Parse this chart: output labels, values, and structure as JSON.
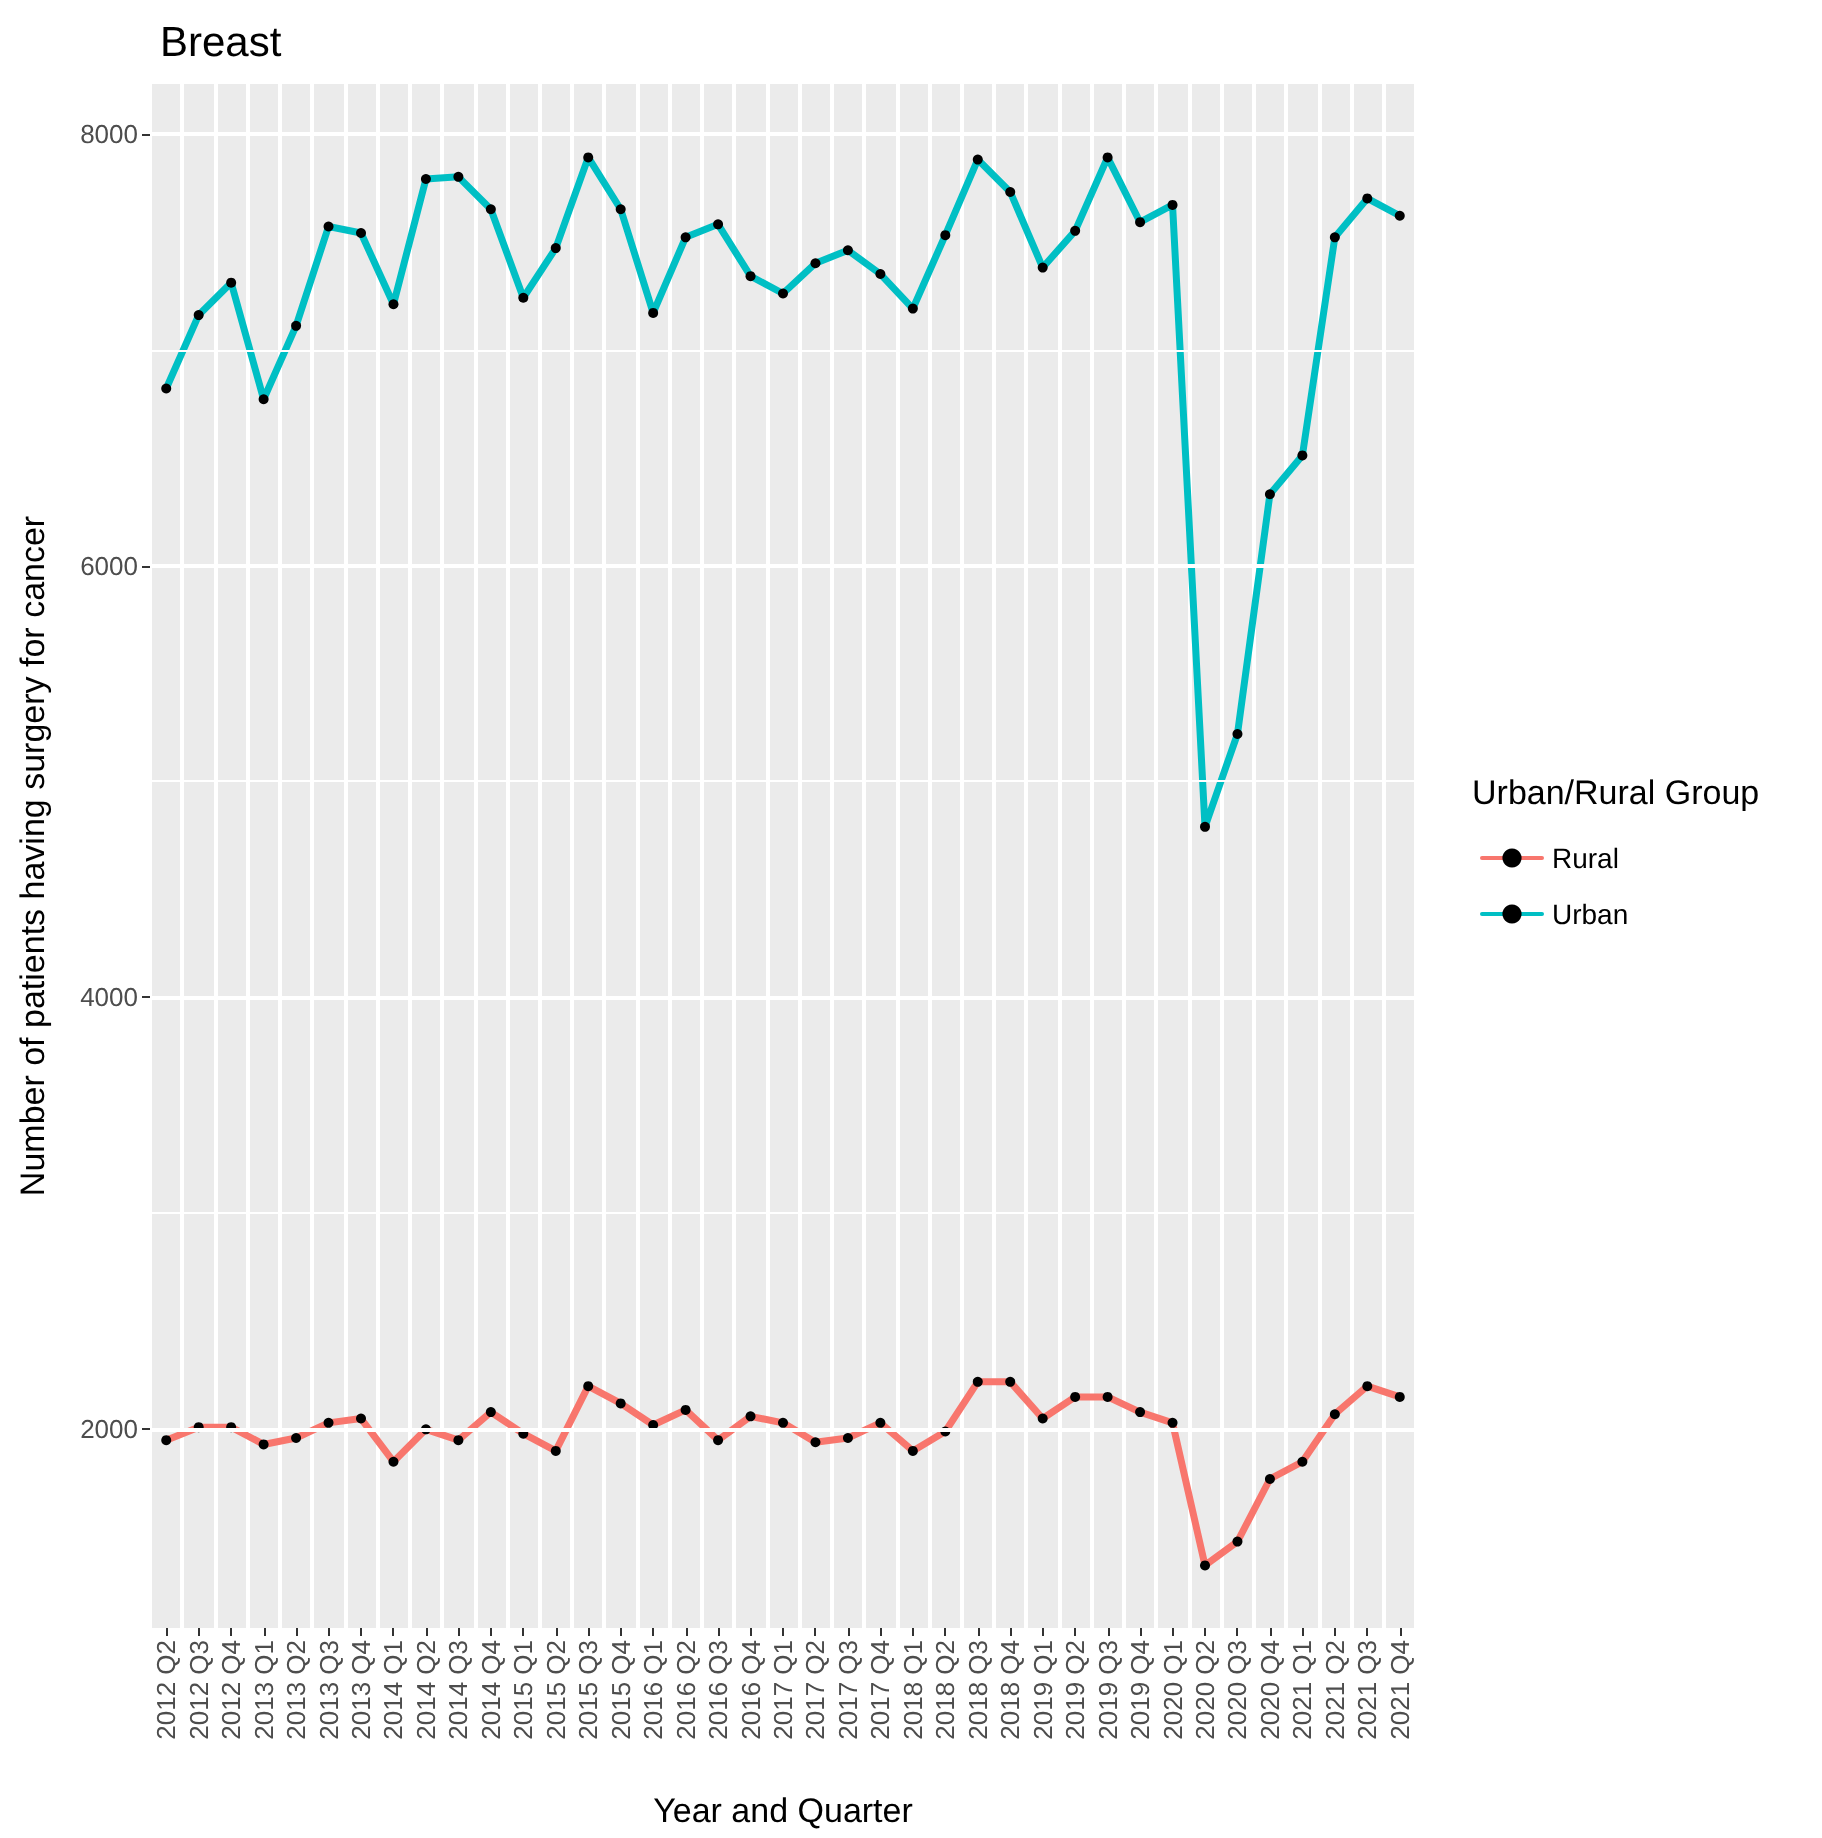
{
  "chart_data": {
    "type": "line",
    "title": "Breast",
    "xlabel": "Year and Quarter",
    "ylabel": "Number of patients having surgery for cancer",
    "legend_title": "Urban/Rural Group",
    "categories": [
      "2012 Q2",
      "2012 Q3",
      "2012 Q4",
      "2013 Q1",
      "2013 Q2",
      "2013 Q3",
      "2013 Q4",
      "2014 Q1",
      "2014 Q2",
      "2014 Q3",
      "2014 Q4",
      "2015 Q1",
      "2015 Q2",
      "2015 Q3",
      "2015 Q4",
      "2016 Q1",
      "2016 Q2",
      "2016 Q3",
      "2016 Q4",
      "2017 Q1",
      "2017 Q2",
      "2017 Q3",
      "2017 Q4",
      "2018 Q1",
      "2018 Q2",
      "2018 Q3",
      "2018 Q4",
      "2019 Q1",
      "2019 Q2",
      "2019 Q3",
      "2019 Q4",
      "2020 Q1",
      "2020 Q2",
      "2020 Q3",
      "2020 Q4",
      "2021 Q1",
      "2021 Q2",
      "2021 Q3",
      "2021 Q4"
    ],
    "series": [
      {
        "name": "Rural",
        "color": "#f8766d",
        "values": [
          1950,
          2010,
          2010,
          1930,
          1960,
          2030,
          2050,
          1850,
          2000,
          1950,
          2080,
          1980,
          1900,
          2200,
          2120,
          2020,
          2090,
          1950,
          2060,
          2030,
          1940,
          1960,
          2030,
          1900,
          1990,
          2220,
          2220,
          2050,
          2150,
          2150,
          2080,
          2030,
          1370,
          1480,
          1770,
          1850,
          2070,
          2200,
          2150
        ]
      },
      {
        "name": "Urban",
        "color": "#00bfc4",
        "values": [
          6820,
          7160,
          7310,
          6770,
          7110,
          7570,
          7540,
          7210,
          7790,
          7800,
          7650,
          7240,
          7470,
          7890,
          7650,
          7170,
          7520,
          7580,
          7340,
          7260,
          7400,
          7460,
          7350,
          7190,
          7530,
          7880,
          7730,
          7380,
          7550,
          7890,
          7590,
          7670,
          4790,
          5220,
          6330,
          6510,
          7520,
          7700,
          7620
        ]
      }
    ],
    "ylim": [
      1080,
      8230
    ],
    "yticks": [
      2000,
      4000,
      6000,
      8000
    ],
    "grid": true,
    "legend": "right",
    "marker": "circle",
    "line_style": "solid"
  }
}
